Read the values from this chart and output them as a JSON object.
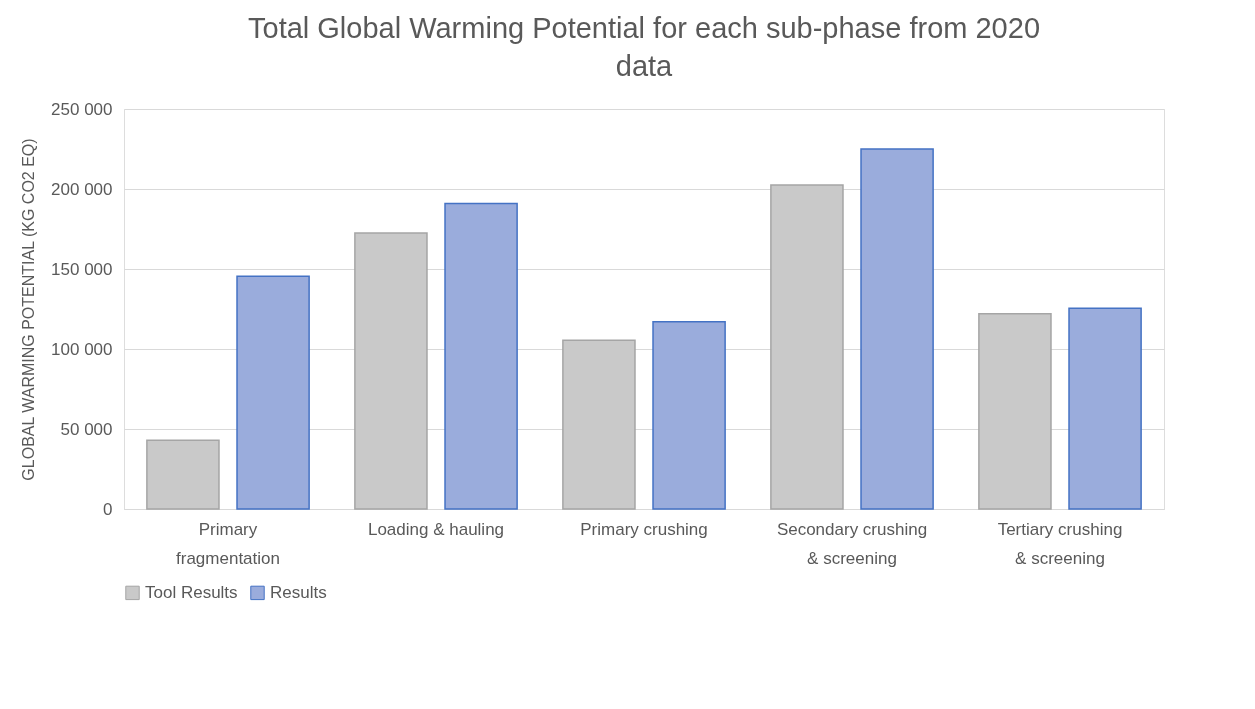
{
  "chart_data": {
    "type": "bar",
    "title": "Total Global Warming Potential for each sub-phase from 2020 data",
    "ylabel": "GLOBAL WARMING POTENTIAL (KG CO2 EQ)",
    "categories": [
      "Primary fragmentation",
      "Loading & hauling",
      "Primary crushing",
      "Secondary crushing & screening",
      "Tertiary crushing & screening"
    ],
    "series": [
      {
        "name": "Tool Results",
        "color": "#c9c9c9",
        "values": [
          43000,
          172500,
          105500,
          202500,
          122000
        ]
      },
      {
        "name": "Results",
        "color": "#9aacdc",
        "values": [
          145500,
          191000,
          117000,
          225000,
          125500
        ]
      }
    ],
    "ylim": [
      0,
      250000
    ],
    "yticks": [
      {
        "value": 0,
        "label": "0"
      },
      {
        "value": 50000,
        "label": "50 000"
      },
      {
        "value": 100000,
        "label": "100 000"
      },
      {
        "value": 150000,
        "label": "150 000"
      },
      {
        "value": 200000,
        "label": "200 000"
      },
      {
        "value": 250000,
        "label": "250 000"
      }
    ],
    "grid": "y",
    "legend": "bottom"
  }
}
